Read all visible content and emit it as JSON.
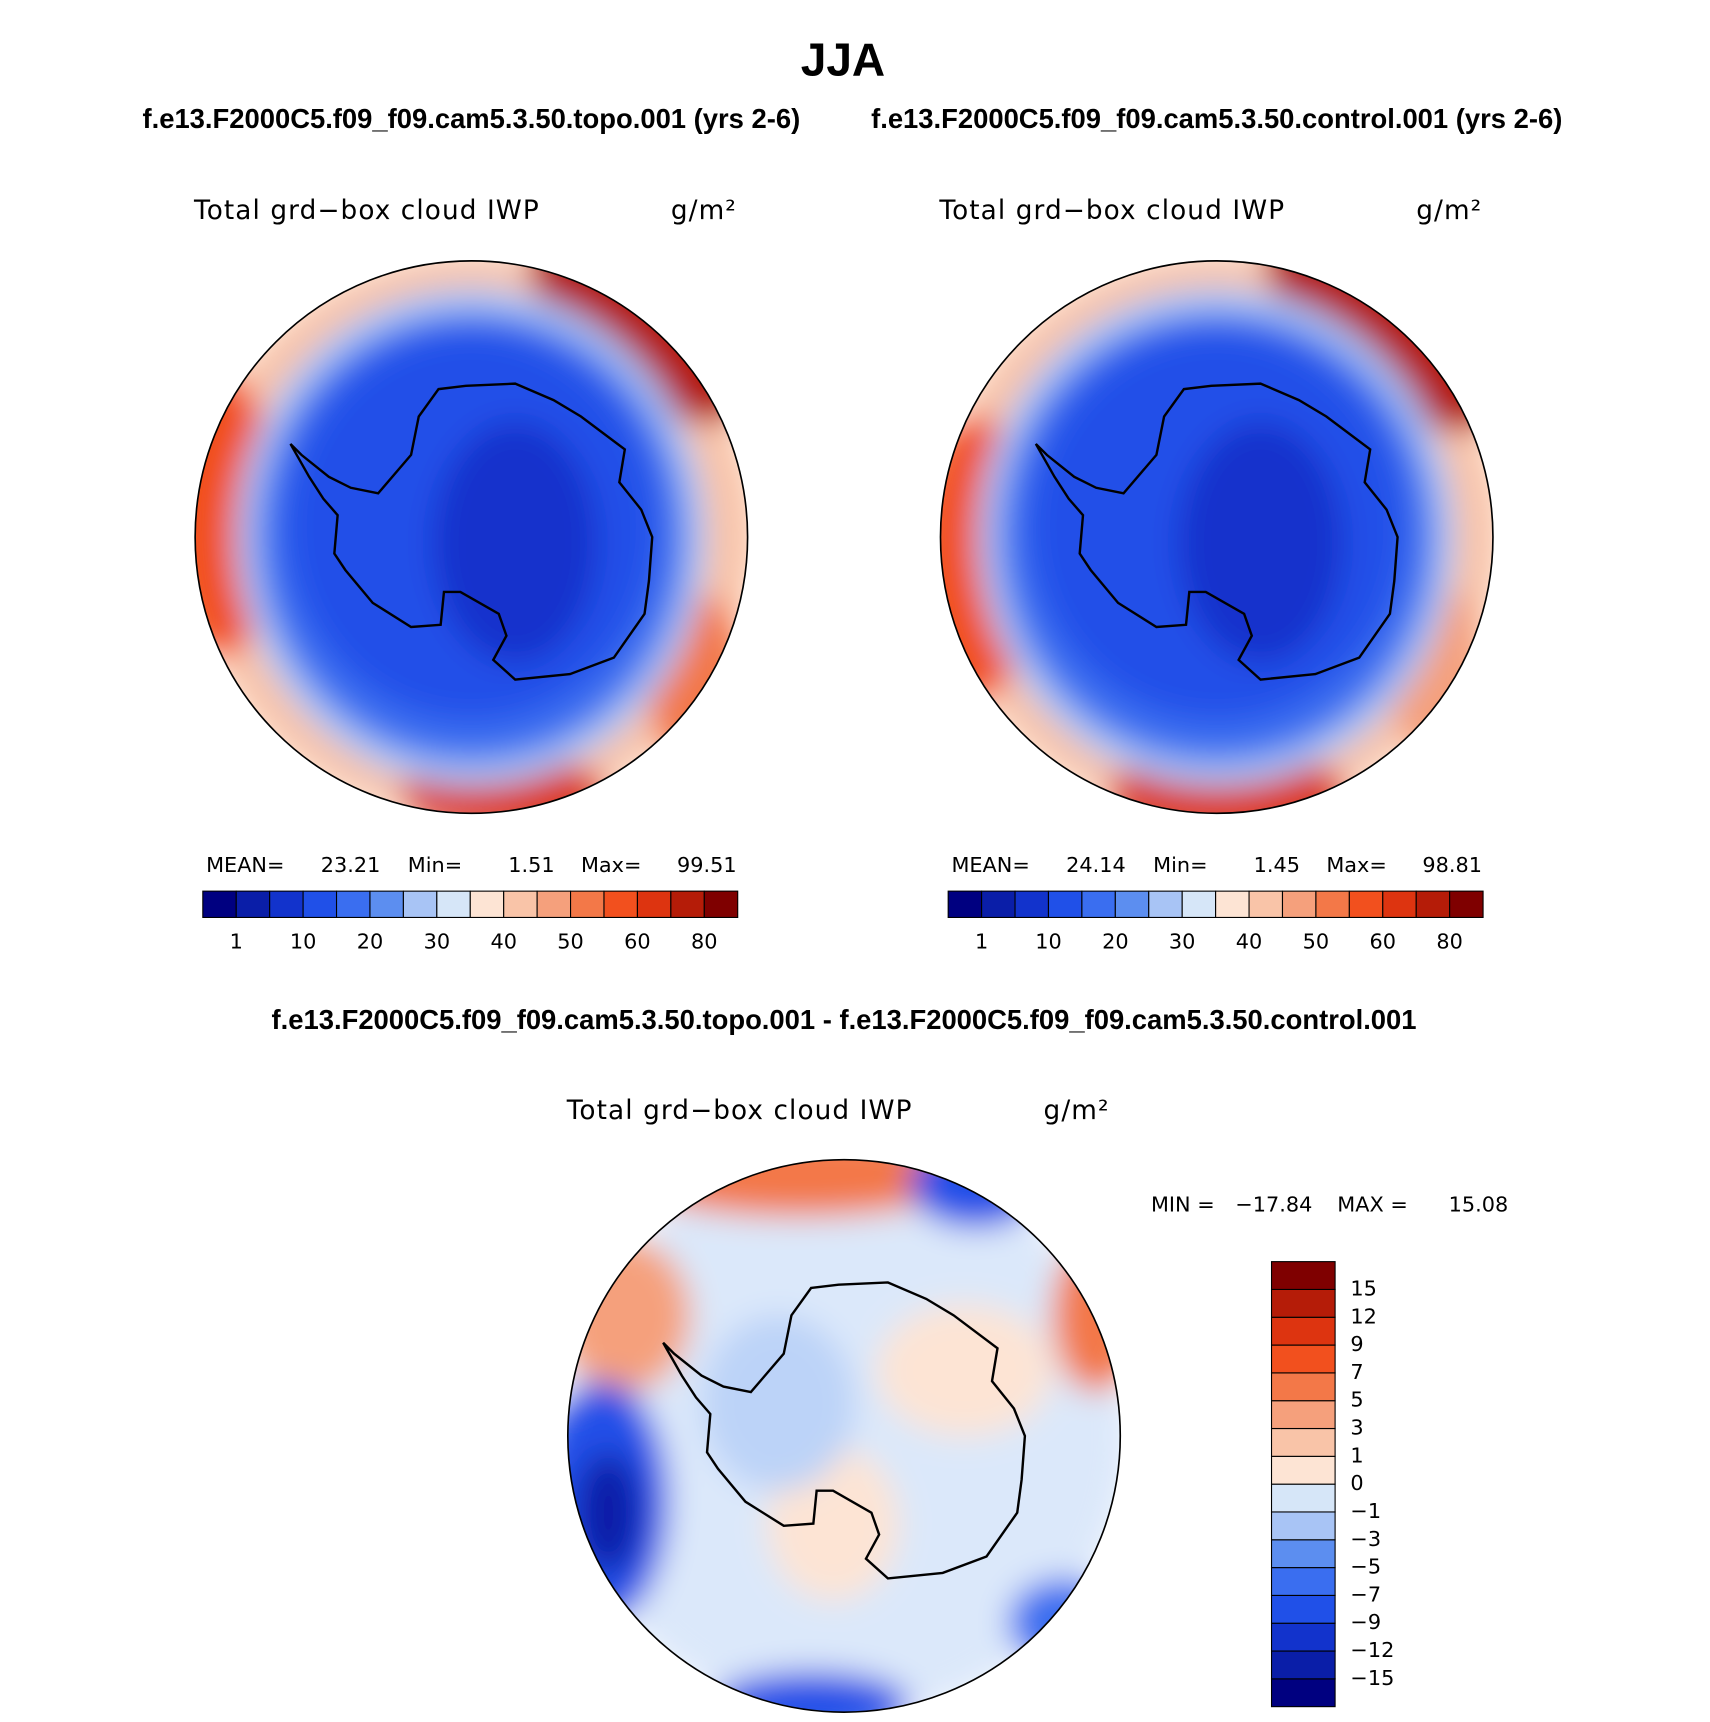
{
  "title": "JJA",
  "colormap": [
    "#000080",
    "#0a1ea8",
    "#1233cc",
    "#2050e8",
    "#3a6ef0",
    "#5c8ef0",
    "#a8c4f5",
    "#d6e6f8",
    "#fde4d4",
    "#f9c4a8",
    "#f5a07c",
    "#f37848",
    "#f2501e",
    "#dd3410",
    "#b51c08",
    "#7f0000"
  ],
  "panels": [
    {
      "case": "f.e13.F2000C5.f09_f09.cam5.3.50.topo.001 (yrs 2-6)",
      "variable": "Total grd−box cloud IWP",
      "units": "g/m²",
      "mean_label": "MEAN=",
      "mean": 23.21,
      "min_label": "Min=",
      "min": 1.51,
      "max_label": "Max=",
      "max": 99.51,
      "colorbar_labels": [
        1,
        10,
        20,
        30,
        40,
        50,
        60,
        80
      ]
    },
    {
      "case": "f.e13.F2000C5.f09_f09.cam5.3.50.control.001 (yrs 2-6)",
      "variable": "Total grd−box cloud IWP",
      "units": "g/m²",
      "mean_label": "MEAN=",
      "mean": 24.14,
      "min_label": "Min=",
      "min": 1.45,
      "max_label": "Max=",
      "max": 98.81,
      "colorbar_labels": [
        1,
        10,
        20,
        30,
        40,
        50,
        60,
        80
      ]
    }
  ],
  "difference": {
    "title": "f.e13.F2000C5.f09_f09.cam5.3.50.topo.001 - f.e13.F2000C5.f09_f09.cam5.3.50.control.001",
    "variable": "Total grd−box cloud IWP",
    "units": "g/m²",
    "min_label": "MIN =",
    "min": {
      "value": -17.84,
      "label": "−17.84"
    },
    "max_label": "MAX =",
    "max": 15.08,
    "colorbar_labels": [
      15,
      12,
      9,
      7,
      5,
      3,
      1,
      0,
      {
        "value": -1,
        "label": "−1"
      },
      {
        "value": -3,
        "label": "−3"
      },
      {
        "value": -5,
        "label": "−5"
      },
      {
        "value": -7,
        "label": "−7"
      },
      {
        "value": -9,
        "label": "−9"
      },
      {
        "value": -12,
        "label": "−12"
      },
      {
        "value": -15,
        "label": "−15"
      }
    ]
  }
}
